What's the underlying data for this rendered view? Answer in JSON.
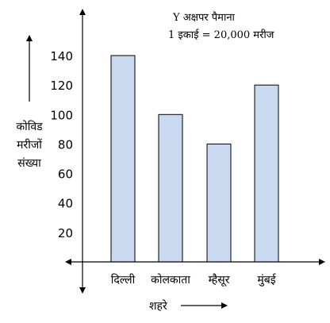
{
  "chart_data": {
    "type": "bar",
    "categories": [
      "दिल्ली",
      "कोलकाता",
      "म्हैसूर",
      "मुंबई"
    ],
    "values": [
      140,
      100,
      80,
      120
    ],
    "ylim": [
      0,
      160
    ],
    "yticks": [
      20,
      40,
      60,
      80,
      100,
      120,
      140
    ],
    "ylabel_lines": [
      "कोविड",
      "मरीजों",
      "संख्या"
    ],
    "xlabel": "शहरे",
    "scale_note_lines": [
      "Y अक्षपर पैमाना",
      "1 इकाई = 20,000 मरीज"
    ],
    "grid": false,
    "bar_color": "#c9daf0",
    "bar_edge_color": "#000000"
  }
}
